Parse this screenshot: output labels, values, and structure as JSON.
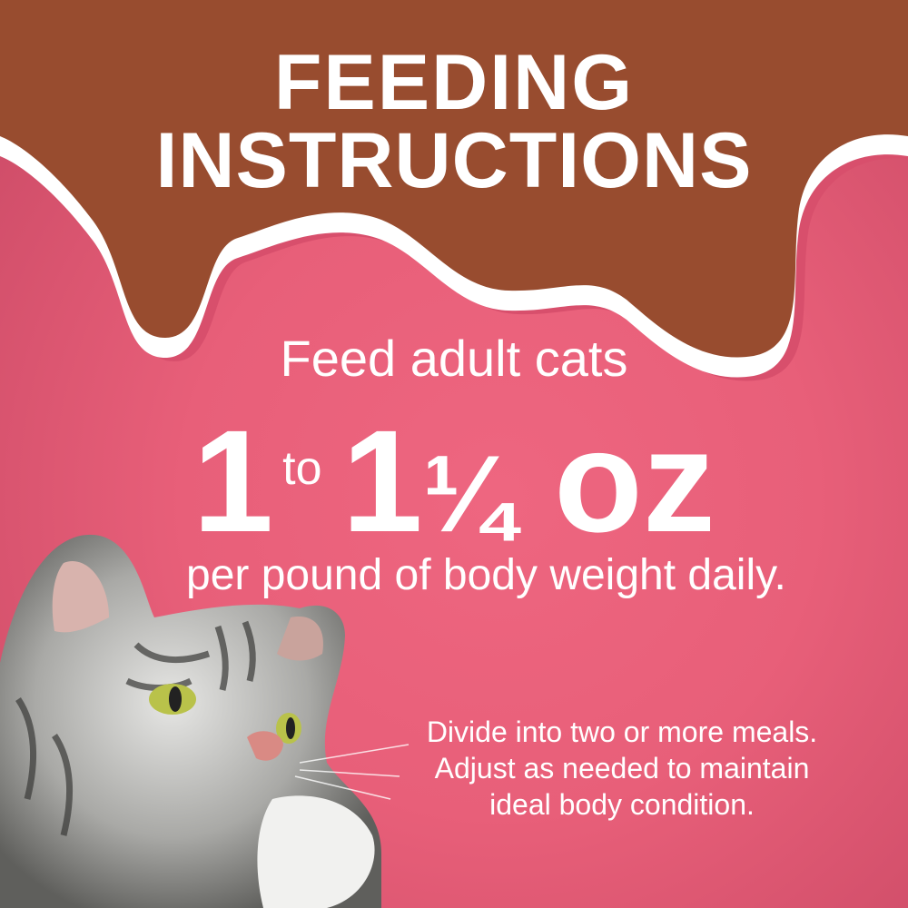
{
  "title": {
    "line1": "FEEDING",
    "line2": "INSTRUCTIONS"
  },
  "intro": "Feed adult cats",
  "amount": {
    "low": "1",
    "connector": "to",
    "high_whole": "1",
    "high_fraction": "¼",
    "unit": "oz"
  },
  "per": "per pound of body weight daily.",
  "note": {
    "line1": "Divide into two or more meals.",
    "line2": "Adjust as needed to maintain",
    "line3": "ideal body condition."
  },
  "colors": {
    "background": "#e85f79",
    "banner": "#984c2f",
    "ribbon": "#ffffff",
    "text": "#ffffff"
  },
  "image": "tabby-cat-photo"
}
